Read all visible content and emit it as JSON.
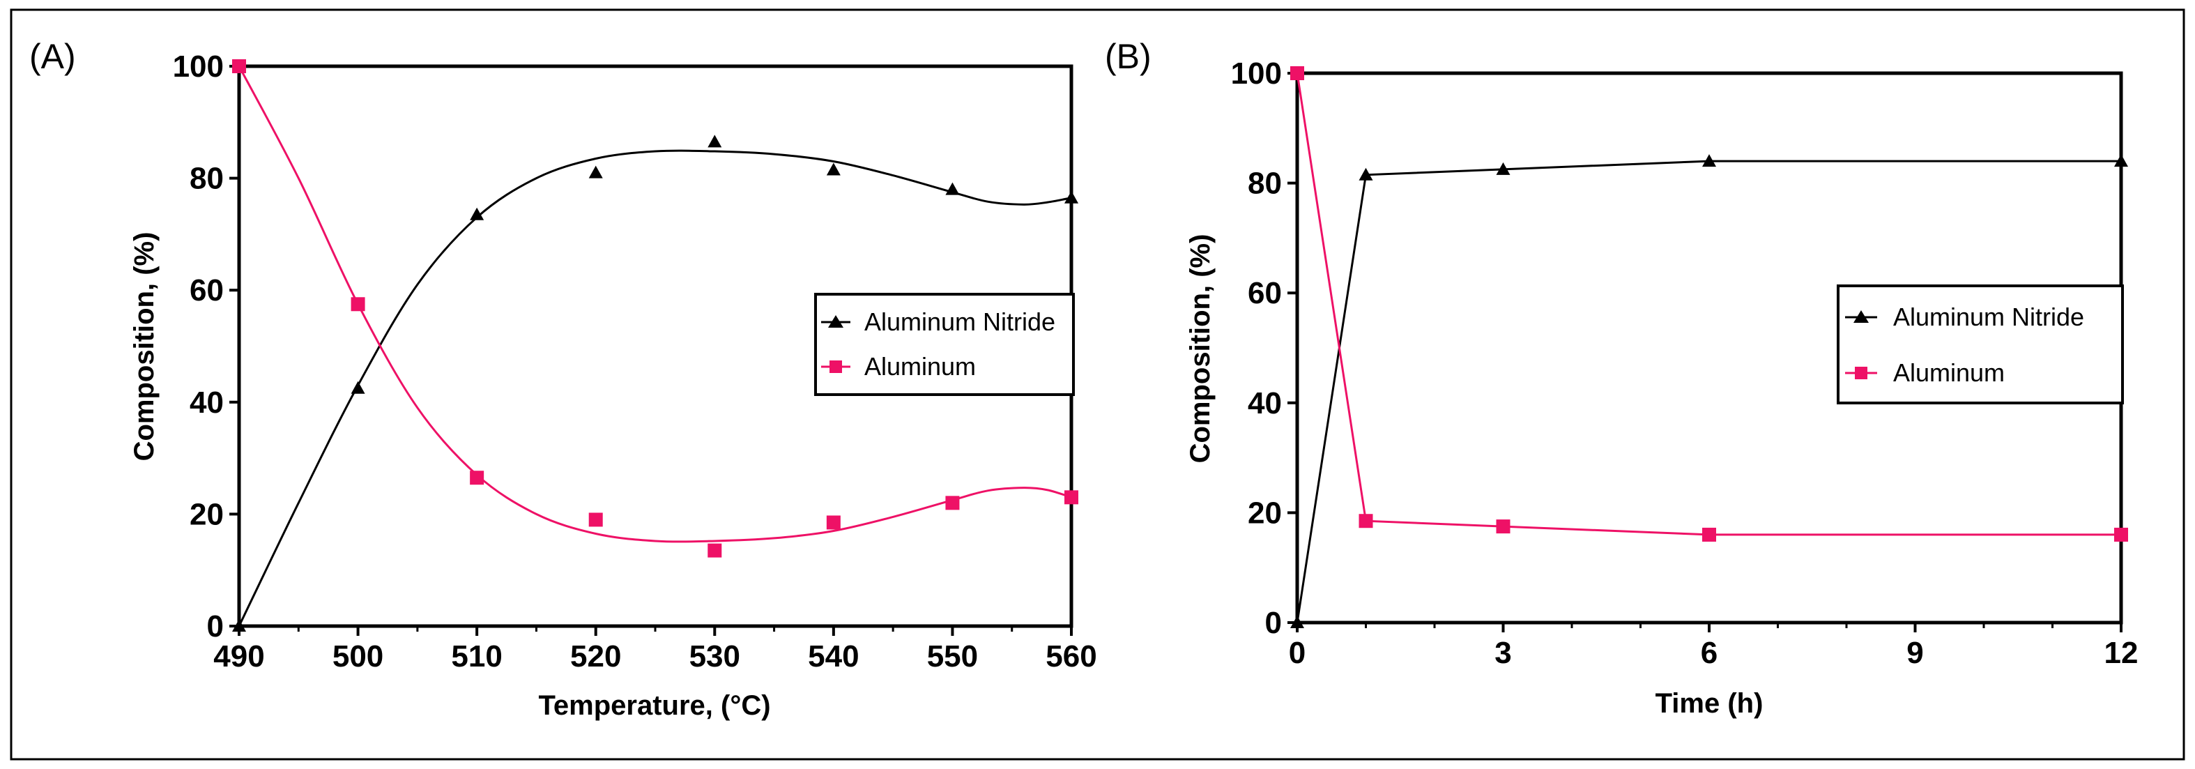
{
  "colors": {
    "nitride": "#000000",
    "aluminum": "#ee1166",
    "frame": "#000000"
  },
  "chart_data": [
    {
      "type": "line",
      "panel_label": "(A)",
      "xlabel": "Temperature, (°C)",
      "ylabel": "Composition, (%)",
      "xlim": [
        490,
        560
      ],
      "ylim": [
        0,
        100
      ],
      "xticks": [
        490,
        500,
        510,
        520,
        530,
        540,
        550,
        560
      ],
      "yticks": [
        0,
        20,
        40,
        60,
        80,
        100
      ],
      "x_minor_step": 5,
      "smooth": true,
      "legend": "center-right",
      "series": [
        {
          "name": "Aluminum Nitride",
          "marker": "triangle",
          "color": "#000000",
          "x": [
            490,
            500,
            510,
            520,
            530,
            540,
            550,
            560
          ],
          "y": [
            0,
            42.5,
            73.5,
            81,
            86.5,
            81.5,
            78,
            76.5
          ],
          "curve_x": [
            490,
            495,
            500,
            505,
            510,
            515,
            520,
            525,
            530,
            535,
            540,
            545,
            550,
            553,
            556,
            558,
            560
          ],
          "curve_y": [
            0,
            22,
            43,
            61,
            73,
            80,
            83.5,
            84.8,
            84.8,
            84.3,
            83,
            80.5,
            77.5,
            75.8,
            75.3,
            75.7,
            76.5
          ]
        },
        {
          "name": "Aluminum",
          "marker": "square",
          "color": "#ee1166",
          "x": [
            490,
            500,
            510,
            520,
            530,
            540,
            550,
            560
          ],
          "y": [
            100,
            57.5,
            26.5,
            19,
            13.5,
            18.5,
            22,
            23
          ],
          "curve_x": [
            490,
            495,
            500,
            505,
            510,
            515,
            520,
            525,
            530,
            535,
            540,
            545,
            550,
            553,
            556,
            558,
            560
          ],
          "curve_y": [
            100,
            80,
            57.5,
            39,
            27,
            20,
            16.5,
            15.2,
            15.2,
            15.7,
            17,
            19.5,
            22.5,
            24.2,
            24.7,
            24.3,
            23
          ]
        }
      ]
    },
    {
      "type": "line",
      "panel_label": "(B)",
      "xlabel": "Time (h)",
      "ylabel": "Composition, (%)",
      "xlim": [
        0,
        12
      ],
      "ylim": [
        0,
        100
      ],
      "xticks": [
        0,
        3,
        6,
        9,
        12
      ],
      "yticks": [
        0,
        20,
        40,
        60,
        80,
        100
      ],
      "x_minor_step": 1,
      "smooth": false,
      "legend": "center-right",
      "series": [
        {
          "name": "Aluminum Nitride",
          "marker": "triangle",
          "color": "#000000",
          "x": [
            0,
            1,
            3,
            6,
            12
          ],
          "y": [
            0,
            81.5,
            82.5,
            84,
            84
          ],
          "curve_x": [
            0,
            1,
            3,
            6,
            12
          ],
          "curve_y": [
            0,
            81.5,
            82.5,
            84,
            84
          ]
        },
        {
          "name": "Aluminum",
          "marker": "square",
          "color": "#ee1166",
          "x": [
            0,
            1,
            3,
            6,
            12
          ],
          "y": [
            100,
            18.5,
            17.5,
            16,
            16
          ],
          "curve_x": [
            0,
            1,
            3,
            6,
            12
          ],
          "curve_y": [
            100,
            18.5,
            17.5,
            16,
            16
          ]
        }
      ]
    }
  ]
}
